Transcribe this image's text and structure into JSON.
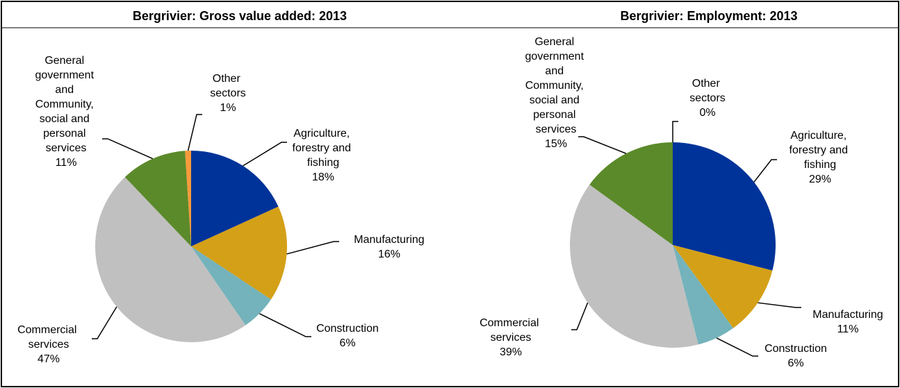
{
  "chart_data": [
    {
      "type": "pie",
      "title": "Bergrivier: Gross value added: 2013",
      "categories": [
        "Agriculture, forestry and fishing",
        "Manufacturing",
        "Construction",
        "Commercial services",
        "General government and Community, social and personal services",
        "Other sectors"
      ],
      "values": [
        18,
        16,
        6,
        47,
        11,
        1
      ],
      "value_labels": [
        "18%",
        "16%",
        "6%",
        "47%",
        "11%",
        "1%"
      ],
      "colors": [
        "#003399",
        "#d4a017",
        "#74b3bb",
        "#c0c0c0",
        "#5b8a2a",
        "#f79a3b"
      ]
    },
    {
      "type": "pie",
      "title": "Bergrivier: Employment: 2013",
      "categories": [
        "Agriculture, forestry and fishing",
        "Manufacturing",
        "Construction",
        "Commercial services",
        "General government and Community, social and personal services",
        "Other sectors"
      ],
      "values": [
        29,
        11,
        6,
        39,
        15,
        0
      ],
      "value_labels": [
        "29%",
        "11%",
        "6%",
        "39%",
        "15%",
        "0%"
      ],
      "colors": [
        "#003399",
        "#d4a017",
        "#74b3bb",
        "#c0c0c0",
        "#5b8a2a",
        "#e8a050"
      ]
    }
  ]
}
